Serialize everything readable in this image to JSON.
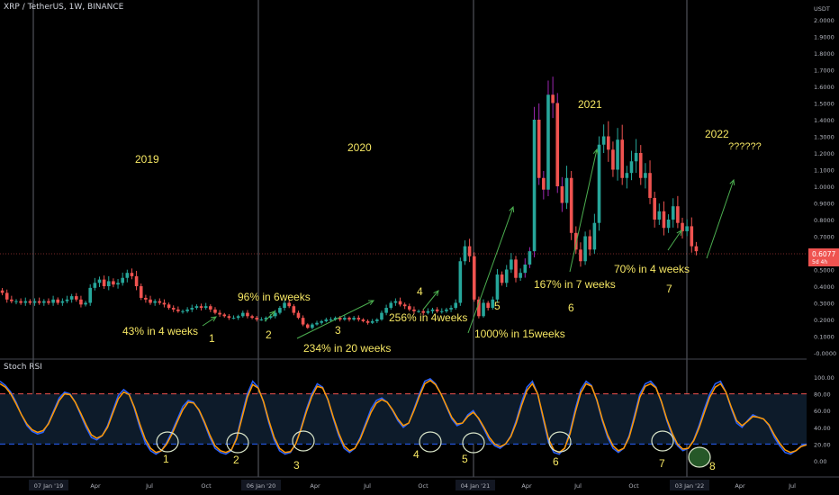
{
  "header": {
    "symbol_title": "XRP / TetherUS, 1W, BINANCE"
  },
  "price_axis": {
    "currency": "USDT",
    "last_price": "0.6077",
    "last_price_sub": "5d 4h"
  },
  "rsi_panel": {
    "title": "Stoch RSI"
  },
  "colors": {
    "up": "#26a69a",
    "down": "#ef5350",
    "wick_purple": "#9c27b0",
    "annotation": "#f5e663",
    "arrow": "#4caf50",
    "k_line": "#2962ff",
    "d_line": "#ff9800",
    "band_fill": "#0d1b2a",
    "band_upper": "#ef5350",
    "band_lower": "#2962ff"
  },
  "year_labels": [
    "2019",
    "2020",
    "2021",
    "2022",
    "??????"
  ],
  "annotations": [
    "43% in 4 weeks",
    "96% in 6weeks",
    "234% in 20 weeks",
    "256% in 4weeks",
    "1000% in 15weeks",
    "167% in 7 weeks",
    "70% in 4 weeks"
  ],
  "cycle_numbers_price": [
    "1",
    "2",
    "3",
    "4",
    "5",
    "6",
    "7"
  ],
  "cycle_numbers_rsi": [
    "1",
    "2",
    "3",
    "4",
    "5",
    "6",
    "7",
    "8"
  ],
  "chart_data": [
    {
      "type": "candlestick",
      "title": "XRP / TetherUS, 1W, BINANCE",
      "ylim": [
        0,
        2.0
      ],
      "y_ticks": [
        "2.0000",
        "1.9000",
        "1.8000",
        "1.7000",
        "1.6000",
        "1.5000",
        "1.4000",
        "1.3000",
        "1.2000",
        "1.1000",
        "1.0000",
        "0.9000",
        "0.8000",
        "0.7000",
        "0.6000",
        "0.5000",
        "0.4000",
        "0.3000",
        "0.2000",
        "0.1000",
        "-0.0000"
      ],
      "x_ticks": [
        "07 Jan '19",
        "Apr",
        "Jul",
        "Oct",
        "06 Jan '20",
        "Apr",
        "Jul",
        "Oct",
        "04 Jan '21",
        "Apr",
        "Jul",
        "Oct",
        "03 Jan '22",
        "Apr",
        "Jul"
      ],
      "close_approx": [
        0.36,
        0.32,
        0.31,
        0.31,
        0.3,
        0.31,
        0.3,
        0.31,
        0.3,
        0.31,
        0.3,
        0.32,
        0.3,
        0.31,
        0.32,
        0.34,
        0.32,
        0.29,
        0.3,
        0.39,
        0.42,
        0.44,
        0.4,
        0.43,
        0.41,
        0.42,
        0.45,
        0.48,
        0.46,
        0.4,
        0.33,
        0.32,
        0.3,
        0.31,
        0.3,
        0.29,
        0.27,
        0.26,
        0.25,
        0.25,
        0.26,
        0.27,
        0.28,
        0.27,
        0.28,
        0.26,
        0.24,
        0.23,
        0.22,
        0.21,
        0.21,
        0.22,
        0.24,
        0.22,
        0.21,
        0.2,
        0.2,
        0.21,
        0.22,
        0.24,
        0.27,
        0.3,
        0.28,
        0.24,
        0.21,
        0.17,
        0.15,
        0.17,
        0.18,
        0.19,
        0.2,
        0.2,
        0.21,
        0.2,
        0.21,
        0.2,
        0.21,
        0.2,
        0.19,
        0.18,
        0.19,
        0.2,
        0.24,
        0.27,
        0.3,
        0.31,
        0.29,
        0.28,
        0.26,
        0.25,
        0.25,
        0.24,
        0.25,
        0.26,
        0.25,
        0.25,
        0.26,
        0.27,
        0.3,
        0.55,
        0.64,
        0.58,
        0.32,
        0.22,
        0.3,
        0.27,
        0.32,
        0.47,
        0.42,
        0.5,
        0.56,
        0.45,
        0.48,
        0.53,
        0.61,
        1.4,
        1.05,
        0.98,
        1.55,
        1.5,
        1.0,
        0.9,
        1.05,
        0.72,
        0.62,
        0.55,
        0.7,
        0.62,
        0.78,
        1.25,
        1.3,
        1.22,
        1.1,
        1.28,
        1.05,
        1.08,
        1.15,
        1.2,
        1.05,
        1.08,
        0.93,
        0.8,
        0.85,
        0.75,
        0.8,
        0.88,
        0.78,
        0.73,
        0.76,
        0.64,
        0.61
      ]
    },
    {
      "type": "line",
      "title": "Stoch RSI",
      "ylim": [
        0,
        100
      ],
      "y_ticks": [
        "100.00",
        "80.00",
        "60.00",
        "40.00",
        "20.00",
        "0.00"
      ],
      "bands": [
        80,
        20
      ],
      "series": [
        {
          "values": [
            95,
            90,
            82,
            70,
            55,
            42,
            35,
            32,
            34,
            45,
            60,
            75,
            82,
            80,
            70,
            55,
            40,
            28,
            25,
            30,
            42,
            60,
            78,
            85,
            80,
            62,
            40,
            22,
            12,
            8,
            12,
            22,
            35,
            50,
            65,
            72,
            70,
            60,
            45,
            28,
            15,
            10,
            8,
            12,
            28,
            55,
            80,
            95,
            88,
            70,
            45,
            25,
            12,
            8,
            10,
            20,
            40,
            62,
            80,
            92,
            88,
            72,
            50,
            30,
            15,
            10,
            15,
            28,
            45,
            62,
            72,
            75,
            70,
            60,
            48,
            40,
            45,
            62,
            80,
            95,
            98,
            92,
            80,
            65,
            50,
            42,
            45,
            55,
            60,
            50,
            38,
            25,
            18,
            15,
            20,
            30,
            48,
            70,
            88,
            95,
            80,
            50,
            22,
            10,
            8,
            15,
            35,
            62,
            85,
            95,
            90,
            72,
            48,
            28,
            15,
            10,
            15,
            30,
            55,
            80,
            92,
            95,
            88,
            70,
            48,
            30,
            18,
            12,
            15,
            25,
            42,
            62,
            80,
            92,
            95,
            82,
            62,
            45,
            40,
            48,
            55,
            52,
            50,
            42,
            28,
            18,
            10,
            8,
            12,
            18,
            20
          ]
        },
        {
          "values": [
            92,
            88,
            80,
            68,
            55,
            44,
            37,
            34,
            36,
            44,
            58,
            72,
            80,
            79,
            70,
            57,
            43,
            31,
            27,
            30,
            40,
            57,
            74,
            82,
            79,
            64,
            44,
            26,
            15,
            10,
            12,
            20,
            32,
            47,
            61,
            70,
            69,
            61,
            47,
            31,
            18,
            12,
            10,
            13,
            26,
            51,
            76,
            91,
            87,
            71,
            48,
            28,
            15,
            10,
            11,
            20,
            38,
            59,
            77,
            89,
            87,
            73,
            52,
            33,
            18,
            12,
            15,
            26,
            42,
            58,
            69,
            73,
            70,
            61,
            50,
            42,
            45,
            60,
            77,
            92,
            96,
            91,
            80,
            66,
            52,
            44,
            45,
            53,
            58,
            51,
            40,
            28,
            20,
            17,
            20,
            29,
            45,
            66,
            84,
            92,
            80,
            53,
            26,
            13,
            10,
            15,
            32,
            58,
            81,
            92,
            89,
            73,
            50,
            31,
            18,
            12,
            15,
            28,
            51,
            76,
            89,
            92,
            87,
            71,
            50,
            33,
            20,
            14,
            15,
            24,
            39,
            58,
            76,
            88,
            92,
            82,
            64,
            48,
            42,
            47,
            53,
            52,
            50,
            43,
            31,
            21,
            13,
            10,
            12,
            17,
            19
          ]
        }
      ]
    }
  ]
}
